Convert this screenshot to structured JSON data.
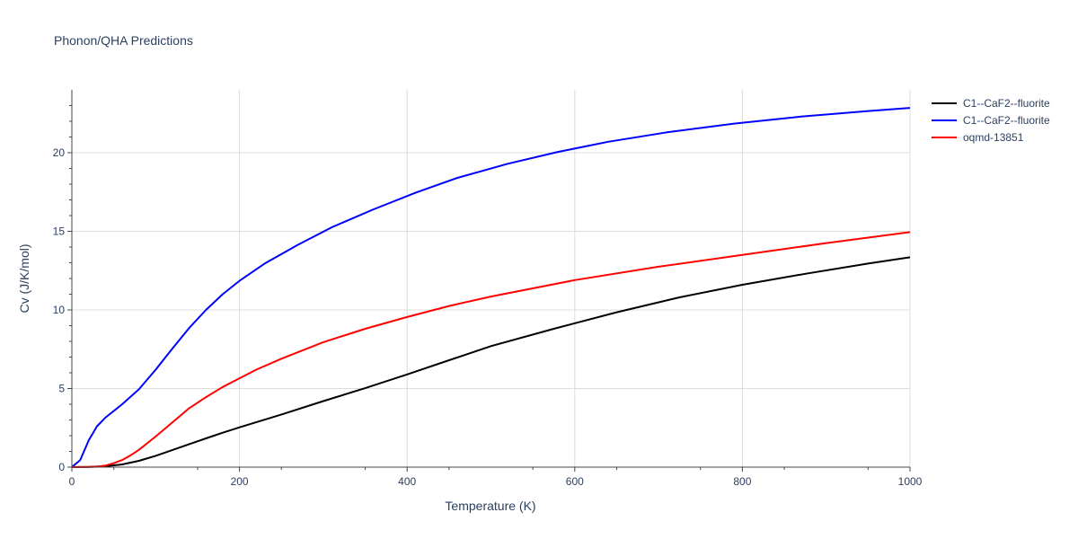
{
  "chart_data": {
    "type": "line",
    "title": "Phonon/QHA Predictions",
    "xlabel": "Temperature (K)",
    "ylabel": "Cv (J/K/mol)",
    "xlim": [
      0,
      1000
    ],
    "ylim": [
      0,
      24
    ],
    "x_ticks": [
      "0",
      "200",
      "400",
      "600",
      "800",
      "1000"
    ],
    "y_ticks": [
      "0",
      "5",
      "10",
      "15",
      "20"
    ],
    "grid": true,
    "legend_position": "top-right",
    "series": [
      {
        "name": "C1--CaF2--fluorite",
        "color": "#000000",
        "x": [
          0,
          20,
          40,
          60,
          80,
          100,
          120,
          140,
          160,
          180,
          200,
          250,
          300,
          350,
          400,
          450,
          500,
          575,
          650,
          725,
          800,
          875,
          950,
          1000
        ],
        "y": [
          0,
          0.01,
          0.06,
          0.17,
          0.4,
          0.72,
          1.09,
          1.46,
          1.83,
          2.19,
          2.53,
          3.35,
          4.2,
          5.02,
          5.9,
          6.8,
          7.7,
          8.8,
          9.85,
          10.8,
          11.6,
          12.3,
          12.95,
          13.35
        ]
      },
      {
        "name": "C1--CaF2--fluorite",
        "color": "#0000ff",
        "x": [
          0,
          10,
          20,
          30,
          40,
          60,
          80,
          100,
          120,
          140,
          160,
          180,
          200,
          230,
          270,
          310,
          360,
          410,
          460,
          520,
          580,
          640,
          710,
          790,
          870,
          950,
          1000
        ],
        "y": [
          0,
          0.45,
          1.7,
          2.6,
          3.15,
          4.0,
          4.95,
          6.2,
          7.55,
          8.85,
          10.0,
          11.0,
          11.85,
          12.95,
          14.15,
          15.25,
          16.4,
          17.45,
          18.4,
          19.3,
          20.05,
          20.7,
          21.3,
          21.85,
          22.3,
          22.65,
          22.85
        ]
      },
      {
        "name": "oqmd-13851",
        "color": "#ff0000",
        "x": [
          0,
          20,
          30,
          40,
          50,
          60,
          70,
          80,
          100,
          120,
          140,
          160,
          180,
          200,
          220,
          250,
          300,
          350,
          400,
          450,
          500,
          600,
          700,
          800,
          900,
          1000
        ],
        "y": [
          0,
          0.01,
          0.03,
          0.1,
          0.25,
          0.45,
          0.75,
          1.1,
          1.95,
          2.85,
          3.75,
          4.45,
          5.1,
          5.65,
          6.2,
          6.9,
          7.95,
          8.8,
          9.55,
          10.25,
          10.85,
          11.9,
          12.75,
          13.5,
          14.25,
          14.95
        ]
      }
    ]
  }
}
